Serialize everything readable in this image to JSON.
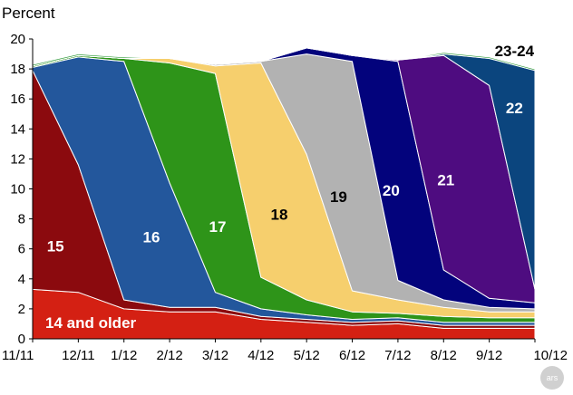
{
  "chart_data": {
    "type": "area",
    "stacked": true,
    "ylabel": "Percent",
    "ylim": [
      0,
      20
    ],
    "yticks": [
      0,
      2,
      4,
      6,
      8,
      10,
      12,
      14,
      16,
      18,
      20
    ],
    "categories": [
      "11/11",
      "12/11",
      "1/12",
      "2/12",
      "3/12",
      "4/12",
      "5/12",
      "6/12",
      "7/12",
      "8/12",
      "9/12",
      "10/12"
    ],
    "series": [
      {
        "name": "14 and older",
        "color": "#d42013",
        "label_color": "#ffffff",
        "values": [
          3.3,
          3.1,
          2.0,
          1.8,
          1.8,
          1.3,
          1.1,
          0.9,
          1.0,
          0.7,
          0.7,
          0.7
        ]
      },
      {
        "name": "15",
        "color": "#8b0a0e",
        "label_color": "#ffffff",
        "values": [
          14.6,
          8.5,
          0.6,
          0.3,
          0.3,
          0.2,
          0.2,
          0.2,
          0.2,
          0.2,
          0.2,
          0.2
        ]
      },
      {
        "name": "16",
        "color": "#23579c",
        "label_color": "#ffffff",
        "values": [
          0.2,
          7.2,
          15.9,
          8.3,
          1.0,
          0.5,
          0.3,
          0.2,
          0.2,
          0.2,
          0.2,
          0.2
        ]
      },
      {
        "name": "17",
        "color": "#2e9419",
        "label_color": "#ffffff",
        "values": [
          0.1,
          0.1,
          0.2,
          8.0,
          14.6,
          2.1,
          1.0,
          0.5,
          0.3,
          0.4,
          0.3,
          0.3
        ]
      },
      {
        "name": "18",
        "color": "#f6cf6d",
        "label_color": "#000000",
        "values": [
          0.0,
          0.0,
          0.0,
          0.3,
          0.5,
          14.3,
          9.7,
          1.4,
          0.9,
          0.6,
          0.4,
          0.4
        ]
      },
      {
        "name": "19",
        "color": "#b2b2b2",
        "label_color": "#000000",
        "values": [
          0.0,
          0.0,
          0.0,
          0.0,
          0.1,
          0.1,
          6.7,
          15.3,
          1.3,
          0.5,
          0.3,
          0.2
        ]
      },
      {
        "name": "20",
        "color": "#03037c",
        "label_color": "#ffffff",
        "values": [
          0.0,
          0.0,
          0.0,
          0.0,
          0.0,
          0.0,
          0.4,
          0.4,
          14.6,
          2.0,
          0.6,
          0.4
        ]
      },
      {
        "name": "21",
        "color": "#4e0c80",
        "label_color": "#ffffff",
        "values": [
          0.0,
          0.0,
          0.0,
          0.0,
          0.0,
          0.0,
          0.0,
          0.0,
          0.1,
          14.3,
          14.2,
          0.9
        ]
      },
      {
        "name": "22",
        "color": "#0b457e",
        "label_color": "#ffffff",
        "values": [
          0.0,
          0.0,
          0.0,
          0.0,
          0.0,
          0.0,
          0.0,
          0.0,
          0.0,
          0.1,
          1.8,
          14.6
        ]
      },
      {
        "name": "23-24",
        "color": "#2f9a3a",
        "label_color": "#000000",
        "values": [
          0.1,
          0.1,
          0.1,
          0.0,
          0.0,
          0.0,
          0.0,
          0.0,
          0.0,
          0.1,
          0.1,
          0.1
        ]
      }
    ],
    "labels": [
      {
        "text": "14 and older",
        "x": 1.0,
        "y": 1.1,
        "color": "#ffffff"
      },
      {
        "text": "15",
        "x": 0.5,
        "y": 6.2,
        "color": "#ffffff"
      },
      {
        "text": "16",
        "x": 2.6,
        "y": 6.8,
        "color": "#ffffff"
      },
      {
        "text": "17",
        "x": 4.05,
        "y": 7.5,
        "color": "#ffffff"
      },
      {
        "text": "18",
        "x": 5.4,
        "y": 8.3,
        "color": "#000000"
      },
      {
        "text": "19",
        "x": 6.7,
        "y": 9.5,
        "color": "#000000"
      },
      {
        "text": "20",
        "x": 7.85,
        "y": 9.9,
        "color": "#ffffff"
      },
      {
        "text": "21",
        "x": 9.05,
        "y": 10.6,
        "color": "#ffffff"
      },
      {
        "text": "22",
        "x": 10.55,
        "y": 15.4,
        "color": "#ffffff"
      },
      {
        "text": "23-24",
        "x": 10.55,
        "y": 19.2,
        "color": "#000000"
      }
    ],
    "grid": false,
    "legend": "none"
  },
  "watermark": "ars"
}
